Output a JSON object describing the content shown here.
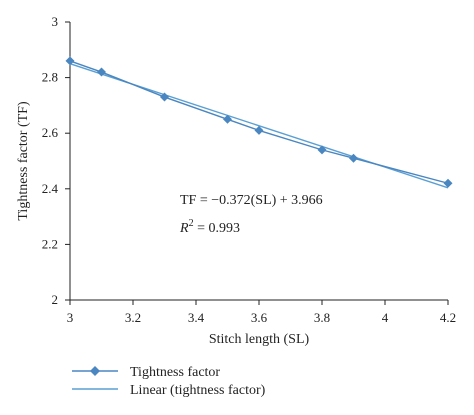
{
  "chart_data": {
    "type": "line",
    "title": "",
    "xlabel": "Stitch length (SL)",
    "ylabel": "Tightness factor (TF)",
    "xlim": [
      3,
      4.2
    ],
    "ylim": [
      2,
      3
    ],
    "x_ticks": [
      "3",
      "3.2",
      "3.4",
      "3.6",
      "3.8",
      "4",
      "4.2"
    ],
    "y_ticks": [
      "2",
      "2.2",
      "2.4",
      "2.6",
      "2.8",
      "3"
    ],
    "grid": false,
    "legend_position": "bottom-left",
    "colors": {
      "series": "#4a86c0",
      "trend": "#5a9fd4",
      "axis": "#222222"
    },
    "series": [
      {
        "name": "Tightness factor",
        "marker": "diamond",
        "x": [
          3.0,
          3.1,
          3.3,
          3.5,
          3.6,
          3.8,
          3.9,
          4.2
        ],
        "y": [
          2.86,
          2.82,
          2.73,
          2.65,
          2.61,
          2.54,
          2.51,
          2.42
        ]
      }
    ],
    "trendline": {
      "name": "Linear (tightness factor)",
      "slope": -0.372,
      "intercept": 3.966,
      "x_range": [
        3.0,
        4.2
      ]
    },
    "annotations": {
      "equation": "TF = −0.372(SL) + 3.966",
      "r2_prefix": "R",
      "r2_sup": "2",
      "r2_rest": " = 0.993"
    }
  }
}
